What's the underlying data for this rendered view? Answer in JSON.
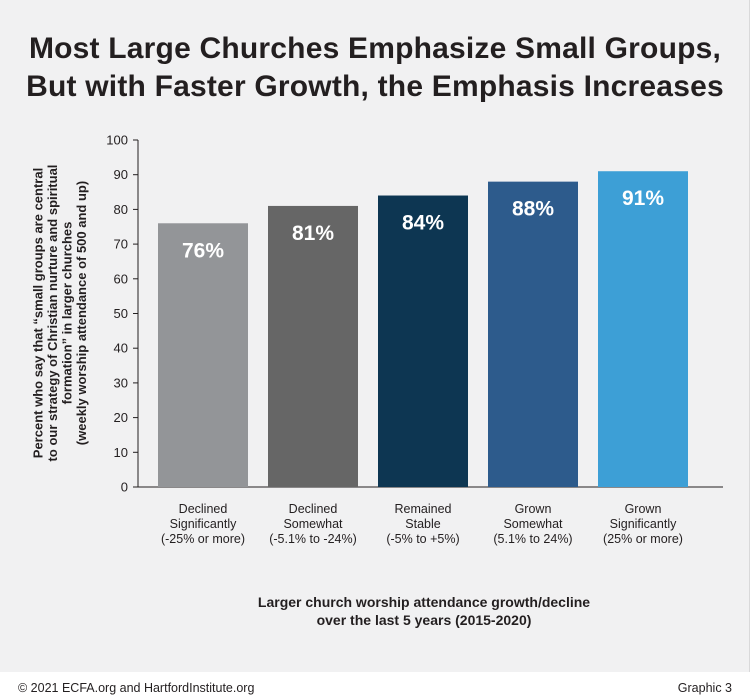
{
  "title_line1": "Most Large Churches Emphasize Small Groups,",
  "title_line2": "But with Faster Growth, the Emphasis Increases",
  "footer": {
    "copyright": "© 2021 ECFA.org and HartfordInstitute.org",
    "graphic_label": "Graphic 3"
  },
  "chart_data": {
    "type": "bar",
    "title": "Most Large Churches Emphasize Small Groups, But with Faster Growth, the Emphasis Increases",
    "categories": [
      [
        "Declined",
        "Significantly",
        "(-25% or more)"
      ],
      [
        "Declined",
        "Somewhat",
        "(-5.1% to -24%)"
      ],
      [
        "Remained",
        "Stable",
        "(-5% to +5%)"
      ],
      [
        "Grown",
        "Somewhat",
        "(5.1% to 24%)"
      ],
      [
        "Grown",
        "Significantly",
        "(25% or more)"
      ]
    ],
    "values": [
      76,
      81,
      84,
      88,
      91
    ],
    "data_labels": [
      "76%",
      "81%",
      "84%",
      "88%",
      "91%"
    ],
    "colors": [
      "#939598",
      "#666666",
      "#0d3652",
      "#2d5b8c",
      "#3d9fd6"
    ],
    "ylabel_lines": [
      "Percent who say that “small groups are central",
      "to our strategy of Christian nurture and spiritual",
      "formation” in larger churches",
      "(weekly worship attendance of 500 and up)"
    ],
    "xlabel_lines": [
      "Larger church worship attendance growth/decline",
      "over the last 5 years (2015-2020)"
    ],
    "y_ticks": [
      0,
      10,
      20,
      30,
      40,
      50,
      60,
      70,
      80,
      90,
      100
    ],
    "ylim": [
      0,
      100
    ],
    "grid": false,
    "legend": "none"
  }
}
